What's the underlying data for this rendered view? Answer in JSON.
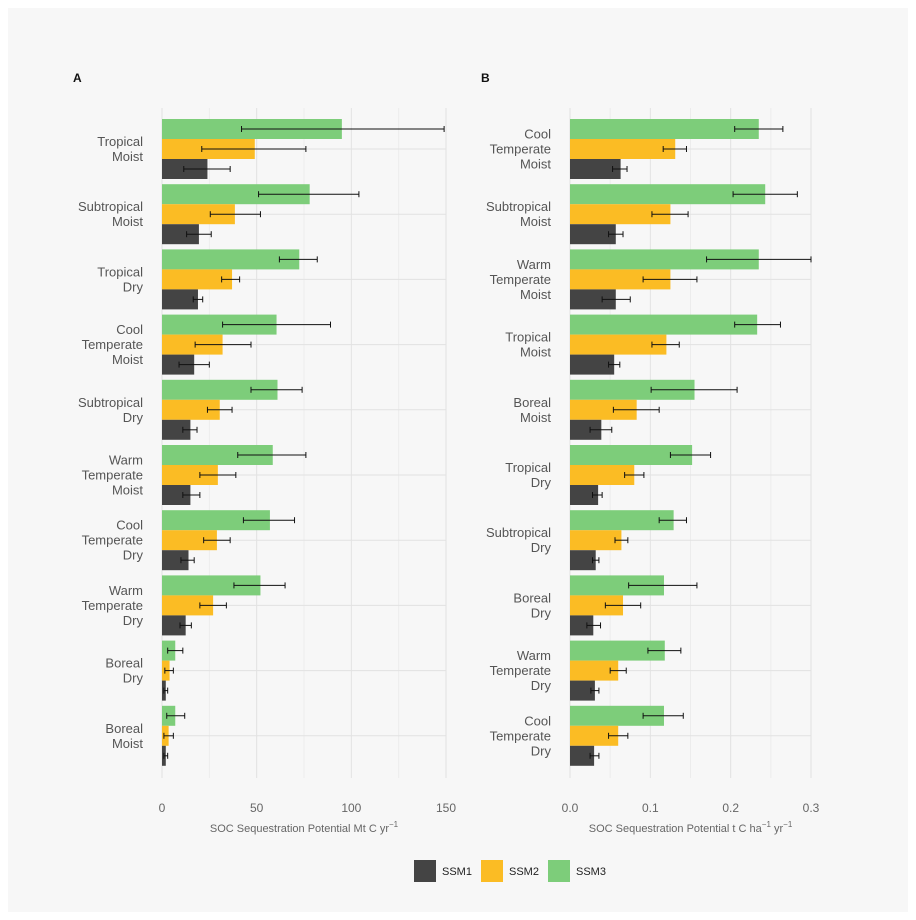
{
  "colors": {
    "SSM1": "#444444",
    "SSM2": "#fbbc24",
    "SSM3": "#7dcd7a",
    "gridline": "#e2e2e2",
    "error_bar": "#111111",
    "background": "#f7f7f7"
  },
  "legend": {
    "items": [
      "SSM1",
      "SSM2",
      "SSM3"
    ]
  },
  "chart_data": [
    {
      "panel": "A",
      "type": "bar",
      "orientation": "horizontal",
      "xlabel_main": "SOC Sequestration Potential",
      "xlabel_unit": "Mt C yr",
      "xlabel_sup": "−1",
      "xlim": [
        0,
        150
      ],
      "xticks": [
        0,
        50,
        100,
        150
      ],
      "grid": true,
      "categories": [
        [
          "Tropical",
          "Moist"
        ],
        [
          "Subtropical",
          "Moist"
        ],
        [
          "Tropical",
          "Dry"
        ],
        [
          "Cool",
          "Temperate",
          "Moist"
        ],
        [
          "Subtropical",
          "Dry"
        ],
        [
          "Warm",
          "Temperate",
          "Moist"
        ],
        [
          "Cool",
          "Temperate",
          "Dry"
        ],
        [
          "Warm",
          "Temperate",
          "Dry"
        ],
        [
          "Boreal",
          "Dry"
        ],
        [
          "Boreal",
          "Moist"
        ]
      ],
      "series": [
        {
          "name": "SSM3",
          "values": [
            95,
            78,
            72.5,
            60.5,
            61,
            58.5,
            57,
            52,
            7,
            7
          ],
          "err_low": [
            42,
            51,
            62,
            32,
            47,
            40,
            43,
            38,
            3,
            2.5
          ],
          "err_high": [
            149,
            104,
            82,
            89,
            74,
            76,
            70,
            65,
            11,
            12
          ]
        },
        {
          "name": "SSM2",
          "values": [
            49,
            38.5,
            37,
            32,
            30.5,
            29.5,
            29,
            27,
            4,
            3.5
          ],
          "err_low": [
            21,
            25.5,
            31.5,
            17.5,
            24,
            20,
            22,
            20,
            1.5,
            1
          ],
          "err_high": [
            76,
            52,
            41,
            47,
            37,
            39,
            36,
            34,
            6,
            6
          ]
        },
        {
          "name": "SSM1",
          "values": [
            24,
            19.5,
            19,
            17,
            15,
            15,
            14,
            12.5,
            2,
            2
          ],
          "err_low": [
            11.5,
            13,
            16.5,
            9,
            11,
            11,
            10,
            9.5,
            1,
            1
          ],
          "err_high": [
            36,
            26,
            21.5,
            25,
            18.5,
            20,
            17,
            15.5,
            3,
            3
          ]
        }
      ]
    },
    {
      "panel": "B",
      "type": "bar",
      "orientation": "horizontal",
      "xlabel_main": "SOC Sequestration Potential",
      "xlabel_unit": "t C ha",
      "xlabel_sup": "−1",
      "xlabel_unit2": " yr",
      "xlabel_sup2": "−1",
      "xlim": [
        0,
        0.3
      ],
      "xticks": [
        0.0,
        0.1,
        0.2,
        0.3
      ],
      "xtick_labels": [
        "0.0",
        "0.1",
        "0.2",
        "0.3"
      ],
      "grid": true,
      "categories": [
        [
          "Cool",
          "Temperate",
          "Moist"
        ],
        [
          "Subtropical",
          "Moist"
        ],
        [
          "Warm",
          "Temperate",
          "Moist"
        ],
        [
          "Tropical",
          "Moist"
        ],
        [
          "Boreal",
          "Moist"
        ],
        [
          "Tropical",
          "Dry"
        ],
        [
          "Subtropical",
          "Dry"
        ],
        [
          "Boreal",
          "Dry"
        ],
        [
          "Warm",
          "Temperate",
          "Dry"
        ],
        [
          "Cool",
          "Temperate",
          "Dry"
        ]
      ],
      "series": [
        {
          "name": "SSM3",
          "values": [
            0.235,
            0.243,
            0.235,
            0.233,
            0.155,
            0.152,
            0.129,
            0.117,
            0.118,
            0.117
          ],
          "err_low": [
            0.205,
            0.203,
            0.17,
            0.205,
            0.101,
            0.125,
            0.111,
            0.073,
            0.097,
            0.091
          ],
          "err_high": [
            0.265,
            0.283,
            0.3,
            0.262,
            0.208,
            0.175,
            0.145,
            0.158,
            0.138,
            0.141
          ]
        },
        {
          "name": "SSM2",
          "values": [
            0.131,
            0.125,
            0.125,
            0.12,
            0.083,
            0.08,
            0.064,
            0.066,
            0.06,
            0.06
          ],
          "err_low": [
            0.116,
            0.102,
            0.091,
            0.102,
            0.054,
            0.068,
            0.056,
            0.044,
            0.05,
            0.048
          ],
          "err_high": [
            0.145,
            0.147,
            0.158,
            0.136,
            0.111,
            0.092,
            0.072,
            0.088,
            0.07,
            0.072
          ]
        },
        {
          "name": "SSM1",
          "values": [
            0.063,
            0.057,
            0.057,
            0.055,
            0.039,
            0.035,
            0.032,
            0.029,
            0.031,
            0.03
          ],
          "err_low": [
            0.053,
            0.048,
            0.04,
            0.048,
            0.025,
            0.028,
            0.028,
            0.021,
            0.026,
            0.025
          ],
          "err_high": [
            0.071,
            0.066,
            0.075,
            0.062,
            0.052,
            0.04,
            0.036,
            0.038,
            0.036,
            0.036
          ]
        }
      ]
    }
  ]
}
